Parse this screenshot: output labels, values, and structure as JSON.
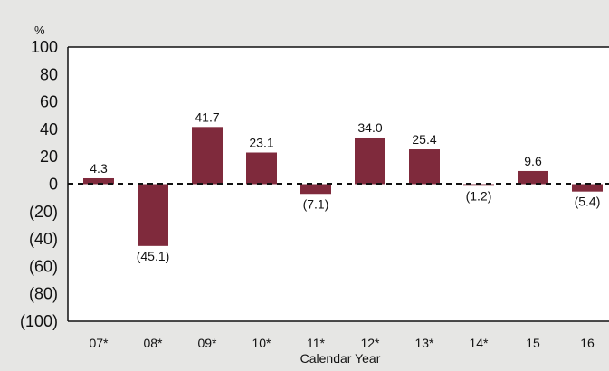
{
  "chart_data": {
    "type": "bar",
    "unit_label": "%",
    "xlabel": "Calendar Year",
    "ylabel": "",
    "ylim": [
      -100,
      100
    ],
    "yticks": [
      100,
      80,
      60,
      40,
      20,
      0,
      -20,
      -40,
      -60,
      -80,
      -100
    ],
    "ytick_labels": [
      "100",
      "80",
      "60",
      "40",
      "20",
      "0",
      "(20)",
      "(40)",
      "(60)",
      "(80)",
      "(100)"
    ],
    "categories": [
      "07*",
      "08*",
      "09*",
      "10*",
      "11*",
      "12*",
      "13*",
      "14*",
      "15",
      "16"
    ],
    "values": [
      4.3,
      -45.1,
      41.7,
      23.1,
      -7.1,
      34.0,
      25.4,
      -1.2,
      9.6,
      -5.4
    ],
    "value_labels": [
      "4.3",
      "(45.1)",
      "41.7",
      "23.1",
      "(7.1)",
      "34.0",
      "25.4",
      "(1.2)",
      "9.6",
      "(5.4)"
    ],
    "zero_line": "dashed",
    "grid": false,
    "colors": {
      "bar": "#7f2a3c",
      "background": "#e6e6e4",
      "plot_background": "#ffffff",
      "axis": "#111111"
    }
  }
}
